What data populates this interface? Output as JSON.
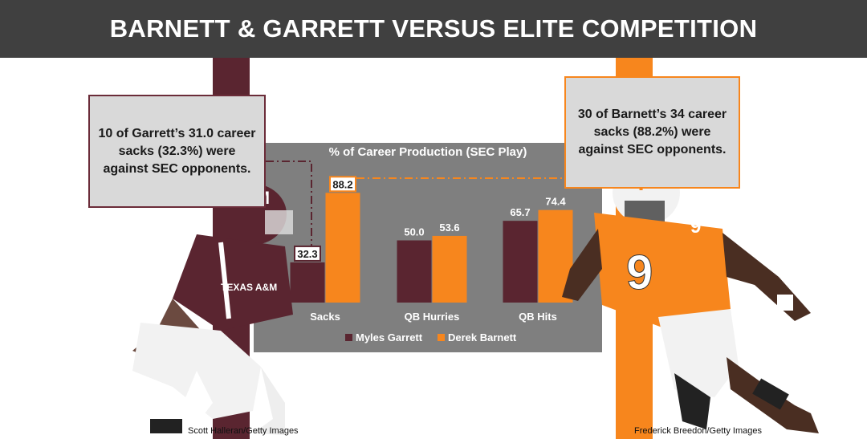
{
  "header": {
    "title": "BARNETT & GARRETT VERSUS ELITE COMPETITION"
  },
  "callouts": {
    "left": "10 of Garrett’s 31.0 career sacks (32.3%) were against SEC opponents.",
    "right": "30 of Barnett’s 34 career sacks (88.2%) were against SEC opponents."
  },
  "credits": {
    "left": "Scott Halleran/Getty Images",
    "right": "Frederick Breedon/Getty Images"
  },
  "colors": {
    "maroon": "#5a2530",
    "orange": "#f7861d",
    "panel": "#7f7f7f",
    "header": "#404040"
  },
  "chart_data": {
    "type": "bar",
    "title": "% of Career Production (SEC Play)",
    "categories": [
      "Sacks",
      "QB Hurries",
      "QB Hits"
    ],
    "series": [
      {
        "name": "Myles Garrett",
        "values": [
          32.3,
          50.0,
          65.7
        ],
        "labels": [
          "32.3",
          "50.0",
          "65.7"
        ],
        "color": "#5a2530"
      },
      {
        "name": "Derek Barnett",
        "values": [
          88.2,
          53.6,
          74.4
        ],
        "labels": [
          "88.2",
          "53.6",
          "74.4"
        ],
        "color": "#f7861d"
      }
    ],
    "ylim": [
      0,
      100
    ],
    "grid": false,
    "legend": "bottom"
  }
}
